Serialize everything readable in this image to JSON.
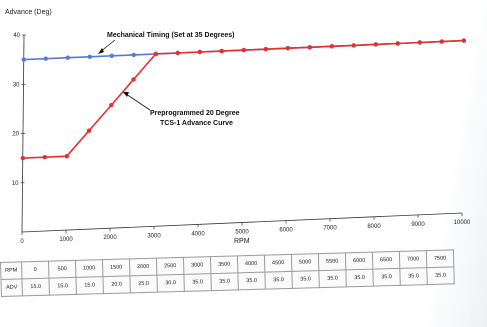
{
  "chart_data": {
    "type": "line",
    "xlabel": "RPM",
    "ylabel": "Advance (Deg)",
    "xlim": [
      0,
      10000
    ],
    "ylim": [
      0,
      40
    ],
    "xticks": [
      0,
      1000,
      2000,
      3000,
      4000,
      5000,
      6000,
      7000,
      8000,
      9000,
      10000
    ],
    "xtick_labels": [
      "0",
      "1000",
      "2000",
      "3000",
      "4000",
      "5000",
      "6000",
      "7000",
      "8000",
      "9000",
      "10000"
    ],
    "yticks": [
      10,
      20,
      30,
      40
    ],
    "ytick_labels": [
      "10",
      "20",
      "30",
      "40"
    ],
    "grid": false,
    "legend": "none",
    "series": [
      {
        "name": "Mechanical Timing (Set at 35 Degrees)",
        "color": "#5a78d8",
        "x": [
          0,
          500,
          1000,
          1500,
          2000,
          2500,
          3000,
          3500,
          4000,
          4500,
          5000,
          5500,
          6000,
          6500,
          7000,
          7500,
          8000,
          8500,
          9000,
          9500,
          10000
        ],
        "y": [
          35,
          35,
          35,
          35,
          35,
          35,
          35,
          35,
          35,
          35,
          35,
          35,
          35,
          35,
          35,
          35,
          35,
          35,
          35,
          35,
          35
        ]
      },
      {
        "name": "Preprogrammed 20 Degree TCS-1 Advance Curve",
        "color": "#e43030",
        "x": [
          0,
          500,
          1000,
          1500,
          2000,
          2500,
          3000,
          3500,
          4000,
          4500,
          5000,
          5500,
          6000,
          6500,
          7000,
          7500,
          8000,
          8500,
          9000,
          9500,
          10000
        ],
        "y": [
          15,
          15,
          15,
          20,
          25,
          30,
          35,
          35,
          35,
          35,
          35,
          35,
          35,
          35,
          35,
          35,
          35,
          35,
          35,
          35,
          35
        ]
      }
    ],
    "annotations": [
      {
        "text": "Mechanical Timing (Set at 35 Degrees)",
        "target": "Mechanical Timing (Set at 35 Degrees)"
      },
      {
        "text": "Preprogrammed 20 Degree",
        "text2": "TCS-1 Advance Curve",
        "target": "Preprogrammed 20 Degree TCS-1 Advance Curve"
      }
    ],
    "table": {
      "row_labels": [
        "RPM",
        "ADV"
      ],
      "rpm": [
        "0",
        "500",
        "1000",
        "1500",
        "2000",
        "2500",
        "3000",
        "3500",
        "4000",
        "4500",
        "5000",
        "5500",
        "6000",
        "6500",
        "7000",
        "7500"
      ],
      "adv": [
        "15.0",
        "15.0",
        "15.0",
        "20.0",
        "25.0",
        "30.0",
        "35.0",
        "35.0",
        "35.0",
        "35.0",
        "35.0",
        "35.0",
        "35.0",
        "35.0",
        "35.0",
        "35.0"
      ]
    }
  }
}
